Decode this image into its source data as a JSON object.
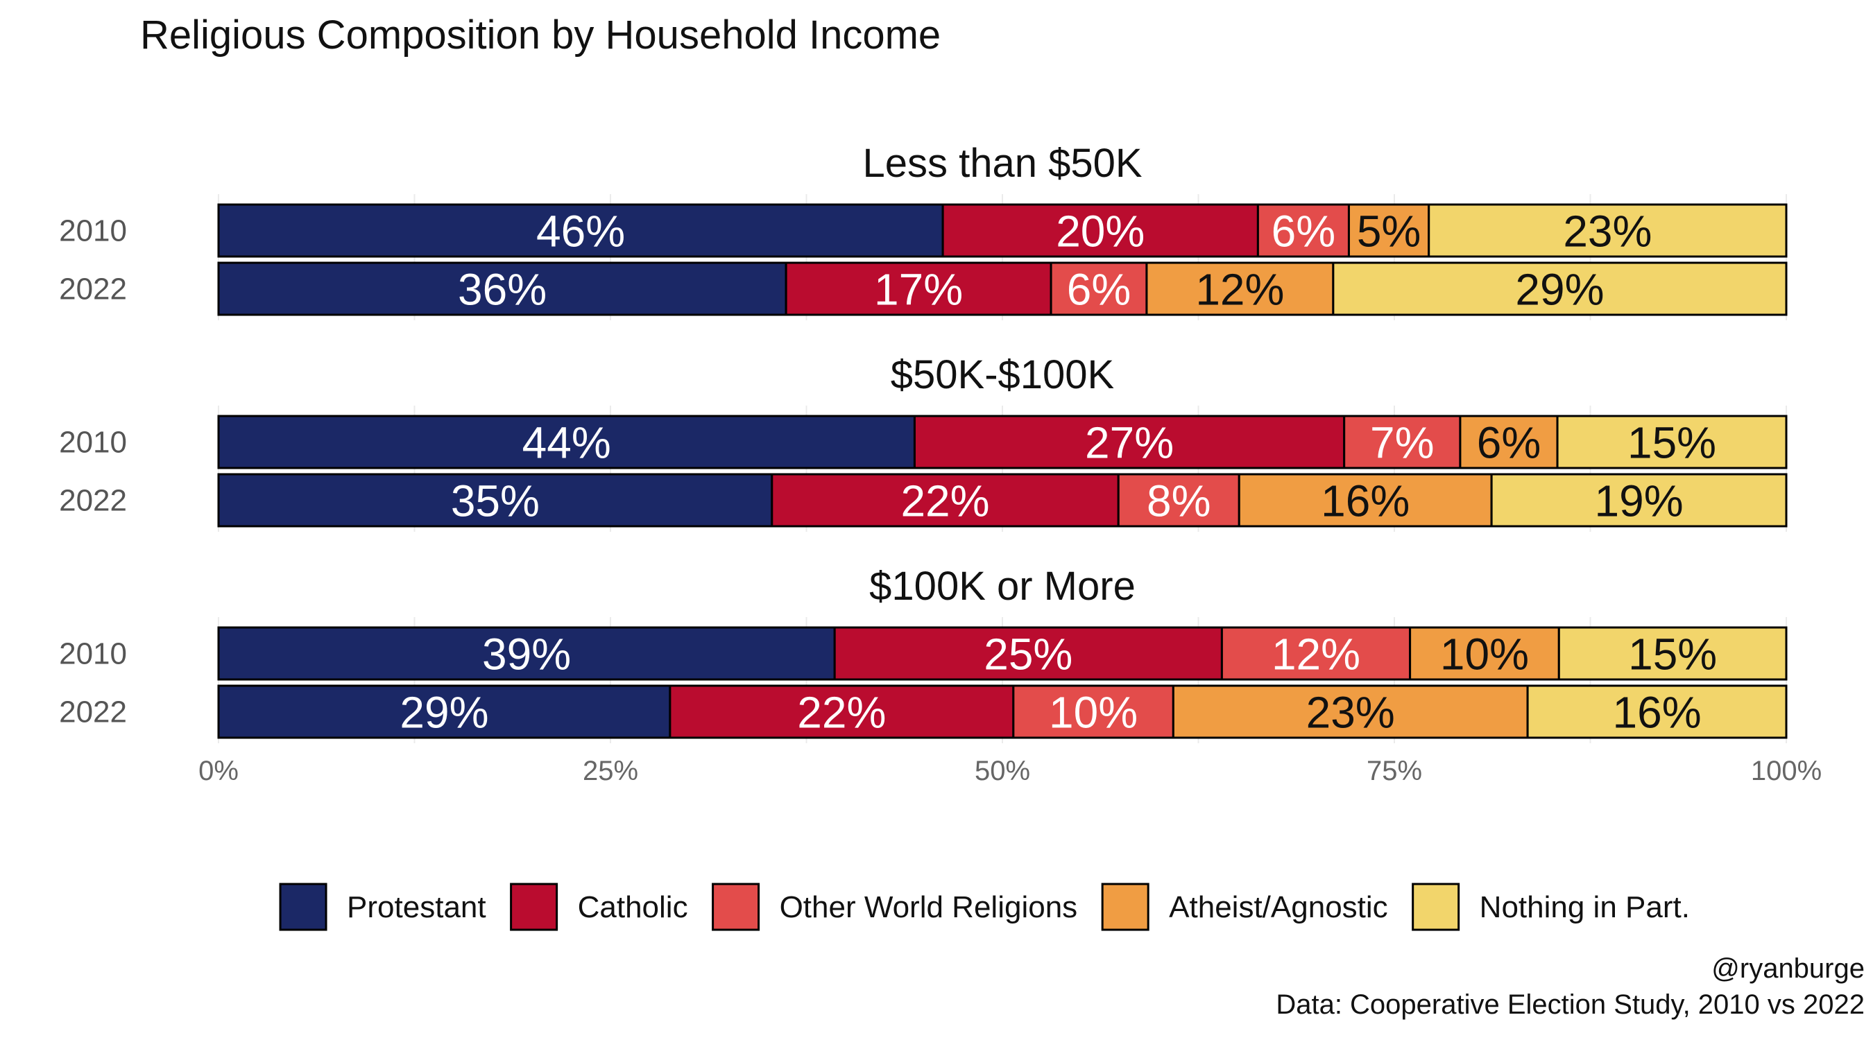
{
  "chart_data": {
    "type": "bar",
    "orientation": "horizontal",
    "stacked": true,
    "title": "Religious Composition by Household Income",
    "caption": [
      "@ryanburge",
      "Data: Cooperative Election Study, 2010 vs 2022"
    ],
    "x_ticks": [
      "0%",
      "25%",
      "50%",
      "75%",
      "100%"
    ],
    "xlim": [
      0,
      100
    ],
    "grid": true,
    "legend_position": "bottom",
    "series": [
      {
        "name": "Protestant",
        "color": "#1b2866"
      },
      {
        "name": "Catholic",
        "color": "#ba0c2f"
      },
      {
        "name": "Other World Religions",
        "color": "#e34c4b"
      },
      {
        "name": "Atheist/Agnostic",
        "color": "#f09d43"
      },
      {
        "name": "Nothing in Part.",
        "color": "#f2d56b"
      }
    ],
    "panels": [
      {
        "title": "Less than $50K",
        "rows": [
          {
            "year": "2010",
            "values": [
              46.2,
              20.1,
              5.8,
              5.1,
              22.8
            ],
            "labels": [
              "46%",
              "20%",
              "6%",
              "5%",
              "23%"
            ]
          },
          {
            "year": "2022",
            "values": [
              36.2,
              16.9,
              6.1,
              11.9,
              28.9
            ],
            "labels": [
              "36%",
              "17%",
              "6%",
              "12%",
              "29%"
            ]
          }
        ]
      },
      {
        "title": "$50K-$100K",
        "rows": [
          {
            "year": "2010",
            "values": [
              44.4,
              27.4,
              7.4,
              6.2,
              14.6
            ],
            "labels": [
              "44%",
              "27%",
              "7%",
              "6%",
              "15%"
            ]
          },
          {
            "year": "2022",
            "values": [
              35.3,
              22.1,
              7.7,
              16.1,
              18.8
            ],
            "labels": [
              "35%",
              "22%",
              "8%",
              "16%",
              "19%"
            ]
          }
        ]
      },
      {
        "title": "$100K or More",
        "rows": [
          {
            "year": "2010",
            "values": [
              39.3,
              24.7,
              12.0,
              9.5,
              14.5
            ],
            "labels": [
              "39%",
              "25%",
              "12%",
              "10%",
              "15%"
            ]
          },
          {
            "year": "2022",
            "values": [
              28.8,
              21.9,
              10.2,
              22.6,
              16.5
            ],
            "labels": [
              "29%",
              "22%",
              "10%",
              "23%",
              "16%"
            ]
          }
        ]
      }
    ]
  }
}
